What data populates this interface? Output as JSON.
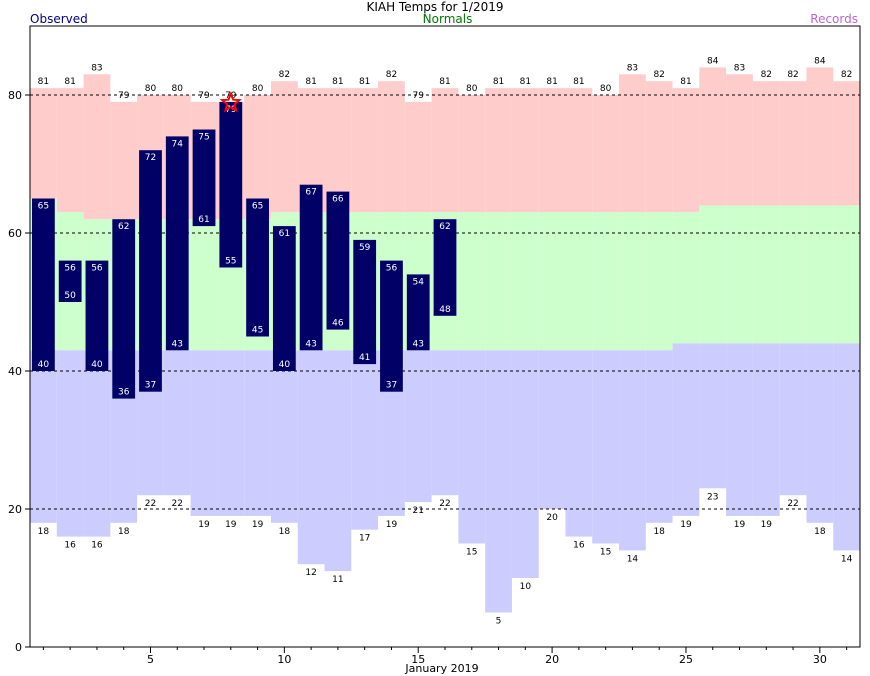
{
  "chart_data": {
    "type": "bar",
    "title": "KIAH Temps for 1/2019",
    "legend": {
      "observed": "Observed",
      "normals": "Normals",
      "records": "Records"
    },
    "xlabel": "January 2019",
    "ylabel": "",
    "xlim": [
      0.5,
      31.5
    ],
    "ylim": [
      0,
      90
    ],
    "x_ticks": [
      5,
      10,
      15,
      20,
      25,
      30
    ],
    "y_ticks": [
      0,
      20,
      40,
      60,
      80
    ],
    "dashed_gridlines": [
      20,
      40,
      60,
      80
    ],
    "days": [
      1,
      2,
      3,
      4,
      5,
      6,
      7,
      8,
      9,
      10,
      11,
      12,
      13,
      14,
      15,
      16,
      17,
      18,
      19,
      20,
      21,
      22,
      23,
      24,
      25,
      26,
      27,
      28,
      29,
      30,
      31
    ],
    "observed_high": [
      65,
      56,
      56,
      62,
      72,
      74,
      75,
      79,
      65,
      61,
      67,
      66,
      59,
      56,
      54,
      62,
      null,
      null,
      null,
      null,
      null,
      null,
      null,
      null,
      null,
      null,
      null,
      null,
      null,
      null,
      null
    ],
    "observed_low": [
      40,
      50,
      40,
      36,
      37,
      43,
      61,
      55,
      45,
      40,
      43,
      46,
      41,
      37,
      43,
      48,
      null,
      null,
      null,
      null,
      null,
      null,
      null,
      null,
      null,
      null,
      null,
      null,
      null,
      null,
      null
    ],
    "record_high": [
      81,
      81,
      83,
      79,
      80,
      80,
      79,
      79,
      80,
      82,
      81,
      81,
      81,
      82,
      79,
      81,
      80,
      81,
      81,
      81,
      81,
      80,
      83,
      82,
      81,
      84,
      83,
      82,
      82,
      84,
      82
    ],
    "record_low": [
      18,
      16,
      16,
      18,
      22,
      22,
      19,
      19,
      19,
      18,
      12,
      11,
      17,
      19,
      21,
      22,
      15,
      5,
      10,
      20,
      16,
      15,
      14,
      18,
      19,
      23,
      19,
      19,
      22,
      18,
      14
    ],
    "normal_high": [
      65,
      63,
      62,
      62,
      62,
      62,
      62,
      62,
      62,
      63,
      63,
      63,
      63,
      63,
      63,
      63,
      63,
      63,
      63,
      63,
      63,
      63,
      63,
      63,
      63,
      64,
      64,
      64,
      64,
      64,
      64
    ],
    "normal_low": [
      43,
      43,
      43,
      43,
      43,
      43,
      43,
      43,
      43,
      43,
      43,
      43,
      43,
      43,
      43,
      43,
      43,
      43,
      43,
      43,
      43,
      43,
      43,
      43,
      44,
      44,
      44,
      44,
      44,
      44,
      44
    ],
    "record_set_days": [
      8
    ],
    "colors": {
      "observed_bar": "#000066",
      "observed_label": "#000080",
      "normals_label": "#007700",
      "records_label": "#bb66cc",
      "record_high_band": "#ffcccc",
      "normal_band": "#ccffcc",
      "record_low_band": "#ccccff",
      "record_star": "#ff0000"
    }
  }
}
